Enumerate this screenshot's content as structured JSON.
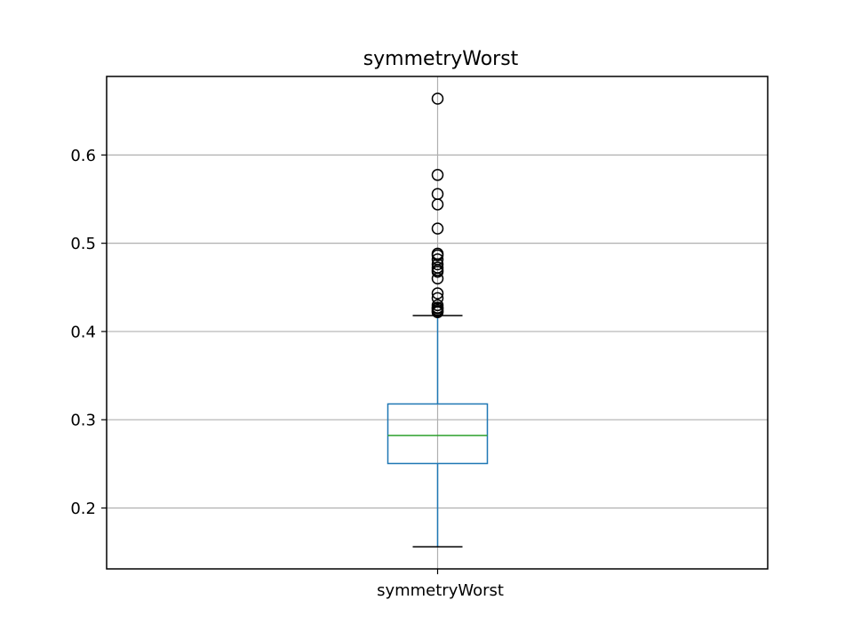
{
  "chart_data": {
    "type": "box",
    "title": "symmetryWorst",
    "xlabel": "",
    "ylabel": "",
    "categories": [
      "symmetryWorst"
    ],
    "ylim": [
      0.131,
      0.689
    ],
    "yticks": [
      0.2,
      0.3,
      0.4,
      0.5,
      0.6
    ],
    "ytick_labels": [
      "0.2",
      "0.3",
      "0.4",
      "0.5",
      "0.6"
    ],
    "grid": true,
    "series": [
      {
        "whisker_low": 0.156,
        "q1": 0.2504,
        "median": 0.2822,
        "q3": 0.3179,
        "whisker_high": 0.418,
        "outliers": [
          0.6638,
          0.5774,
          0.5558,
          0.544,
          0.5166,
          0.4882,
          0.4863,
          0.4818,
          0.4761,
          0.4724,
          0.4695,
          0.4677,
          0.4601,
          0.4432,
          0.4378,
          0.4298,
          0.427,
          0.4264,
          0.4245,
          0.4228,
          0.4218
        ]
      }
    ],
    "colors": {
      "box": "#1f77b4",
      "median": "#2ca02c",
      "caps": "#000000",
      "outlier": "#000000",
      "grid": "#b0b0b0",
      "axes": "#000000"
    }
  }
}
